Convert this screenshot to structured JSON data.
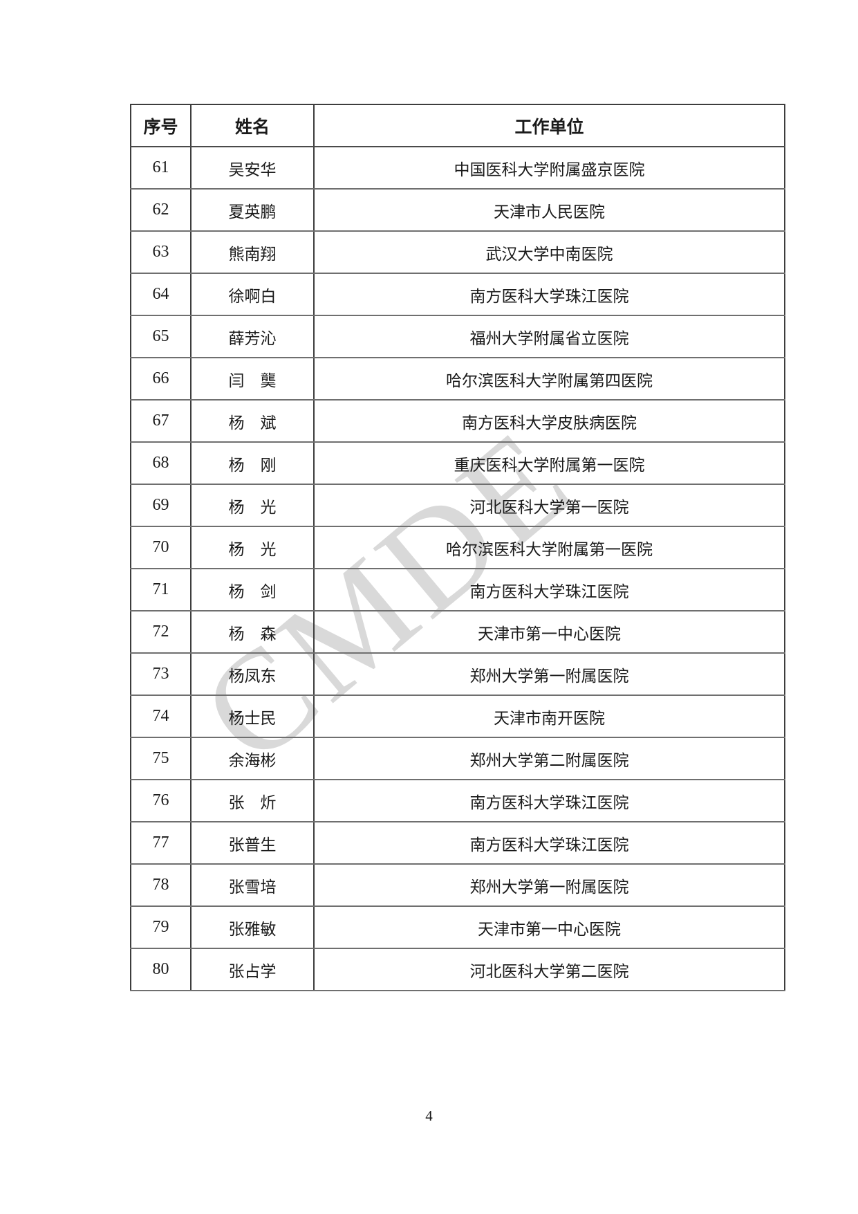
{
  "document": {
    "watermark": "CMDE",
    "page_number": "4"
  },
  "table": {
    "headers": [
      "序号",
      "姓名",
      "工作单位"
    ],
    "rows": [
      {
        "no": "61",
        "name": "吴安华",
        "org": "中国医科大学附属盛京医院"
      },
      {
        "no": "62",
        "name": "夏英鹏",
        "org": "天津市人民医院"
      },
      {
        "no": "63",
        "name": "熊南翔",
        "org": "武汉大学中南医院"
      },
      {
        "no": "64",
        "name": "徐啊白",
        "org": "南方医科大学珠江医院"
      },
      {
        "no": "65",
        "name": "薛芳沁",
        "org": "福州大学附属省立医院"
      },
      {
        "no": "66",
        "name": "闫　龑",
        "org": "哈尔滨医科大学附属第四医院"
      },
      {
        "no": "67",
        "name": "杨　斌",
        "org": "南方医科大学皮肤病医院"
      },
      {
        "no": "68",
        "name": "杨　刚",
        "org": "重庆医科大学附属第一医院"
      },
      {
        "no": "69",
        "name": "杨　光",
        "org": "河北医科大学第一医院"
      },
      {
        "no": "70",
        "name": "杨　光",
        "org": "哈尔滨医科大学附属第一医院"
      },
      {
        "no": "71",
        "name": "杨　剑",
        "org": "南方医科大学珠江医院"
      },
      {
        "no": "72",
        "name": "杨　森",
        "org": "天津市第一中心医院"
      },
      {
        "no": "73",
        "name": "杨凤东",
        "org": "郑州大学第一附属医院"
      },
      {
        "no": "74",
        "name": "杨士民",
        "org": "天津市南开医院"
      },
      {
        "no": "75",
        "name": "余海彬",
        "org": "郑州大学第二附属医院"
      },
      {
        "no": "76",
        "name": "张　炘",
        "org": "南方医科大学珠江医院"
      },
      {
        "no": "77",
        "name": "张普生",
        "org": "南方医科大学珠江医院"
      },
      {
        "no": "78",
        "name": "张雪培",
        "org": "郑州大学第一附属医院"
      },
      {
        "no": "79",
        "name": "张雅敏",
        "org": "天津市第一中心医院"
      },
      {
        "no": "80",
        "name": "张占学",
        "org": "河北医科大学第二医院"
      }
    ]
  },
  "colors": {
    "watermark": "#d9d9d9",
    "border_dark": "#3d3d3d",
    "border_light": "#6f6f6f",
    "text": "#1a1a1a",
    "background": "#ffffff"
  }
}
